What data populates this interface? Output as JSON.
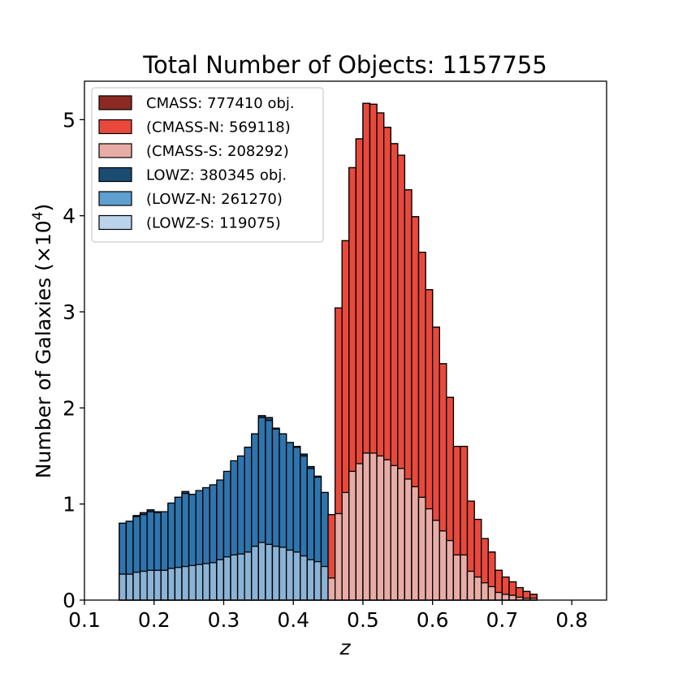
{
  "chart_data": {
    "type": "bar",
    "stacked": true,
    "title": "Total Number of Objects: 1157755",
    "xlabel": "z",
    "ylabel_text": "Number of Galaxies (×10",
    "ylabel_exp": "4",
    "ylabel_close": ")",
    "xlim": [
      0.1,
      0.85
    ],
    "ylim": [
      0,
      5.4
    ],
    "xticks": [
      0.1,
      0.2,
      0.3,
      0.4,
      0.5,
      0.6,
      0.7,
      0.8
    ],
    "xtick_labels": [
      "0.1",
      "0.2",
      "0.3",
      "0.4",
      "0.5",
      "0.6",
      "0.7",
      "0.8"
    ],
    "yticks": [
      0,
      1,
      2,
      3,
      4,
      5
    ],
    "ytick_labels": [
      "0",
      "1",
      "2",
      "3",
      "4",
      "5"
    ],
    "legend_position": "top-left",
    "bin_width": 0.01,
    "lowz": {
      "bin_start": 0.15,
      "totals": [
        0.8,
        0.82,
        0.88,
        0.91,
        0.94,
        0.92,
        0.91,
        1.0,
        1.07,
        1.13,
        1.1,
        1.13,
        1.16,
        1.18,
        1.21,
        1.3,
        1.43,
        1.49,
        1.59,
        1.73,
        1.92,
        1.9,
        1.79,
        1.73,
        1.64,
        1.6,
        1.52,
        1.39,
        1.29,
        1.12
      ],
      "north": [
        0.53,
        0.55,
        0.58,
        0.59,
        0.61,
        0.6,
        0.61,
        0.68,
        0.73,
        0.76,
        0.74,
        0.77,
        0.79,
        0.81,
        0.83,
        0.89,
        0.98,
        1.02,
        1.09,
        1.17,
        1.3,
        1.29,
        1.22,
        1.18,
        1.12,
        1.09,
        1.04,
        0.95,
        0.88,
        0.77
      ],
      "south": [
        0.27,
        0.27,
        0.29,
        0.3,
        0.31,
        0.31,
        0.31,
        0.33,
        0.34,
        0.35,
        0.36,
        0.37,
        0.38,
        0.39,
        0.42,
        0.45,
        0.47,
        0.48,
        0.5,
        0.56,
        0.6,
        0.58,
        0.56,
        0.55,
        0.52,
        0.5,
        0.46,
        0.42,
        0.4,
        0.35
      ]
    },
    "cmass": {
      "bin_start": 0.45,
      "totals": [
        0.89,
        3.04,
        3.74,
        4.5,
        4.8,
        5.17,
        5.16,
        5.07,
        4.92,
        4.75,
        4.63,
        4.27,
        3.99,
        3.62,
        3.23,
        2.84,
        2.46,
        2.11,
        1.6,
        1.6,
        1.03,
        0.84,
        0.64,
        0.5,
        0.31,
        0.24,
        0.19,
        0.13,
        0.09,
        0.06
      ],
      "north": [
        0.66,
        2.14,
        2.62,
        3.16,
        3.38,
        3.64,
        3.63,
        3.57,
        3.46,
        3.35,
        3.26,
        3.01,
        2.81,
        2.55,
        2.28,
        2.01,
        1.74,
        1.49,
        1.13,
        1.13,
        0.73,
        0.6,
        0.46,
        0.36,
        0.23,
        0.18,
        0.14,
        0.1,
        0.07,
        0.04
      ],
      "south": [
        0.23,
        0.9,
        1.12,
        1.34,
        1.42,
        1.53,
        1.53,
        1.5,
        1.46,
        1.4,
        1.37,
        1.26,
        1.18,
        1.07,
        0.95,
        0.83,
        0.72,
        0.62,
        0.47,
        0.47,
        0.3,
        0.24,
        0.18,
        0.14,
        0.08,
        0.06,
        0.05,
        0.03,
        0.02,
        0.02
      ]
    },
    "colors": {
      "cmass_total": "#8b2a22",
      "cmass_north": "#e8493c",
      "cmass_south": "#e8aca6",
      "lowz_total": "#1a4c72",
      "lowz_north": "#2f74ad",
      "lowz_south": "#8bb3d6",
      "legend_lowz_north": "#5f9fcf",
      "legend_lowz_south": "#b9d4ea"
    },
    "legend": [
      {
        "label": "CMASS: 777410 obj.",
        "color_key": "cmass_total"
      },
      {
        "label": "(CMASS-N: 569118)",
        "color_key": "cmass_north"
      },
      {
        "label": "(CMASS-S: 208292)",
        "color_key": "cmass_south"
      },
      {
        "label": "LOWZ: 380345 obj.",
        "color_key": "lowz_total"
      },
      {
        "label": "(LOWZ-N: 261270)",
        "color_key": "legend_lowz_north"
      },
      {
        "label": "(LOWZ-S: 119075)",
        "color_key": "legend_lowz_south"
      }
    ]
  }
}
